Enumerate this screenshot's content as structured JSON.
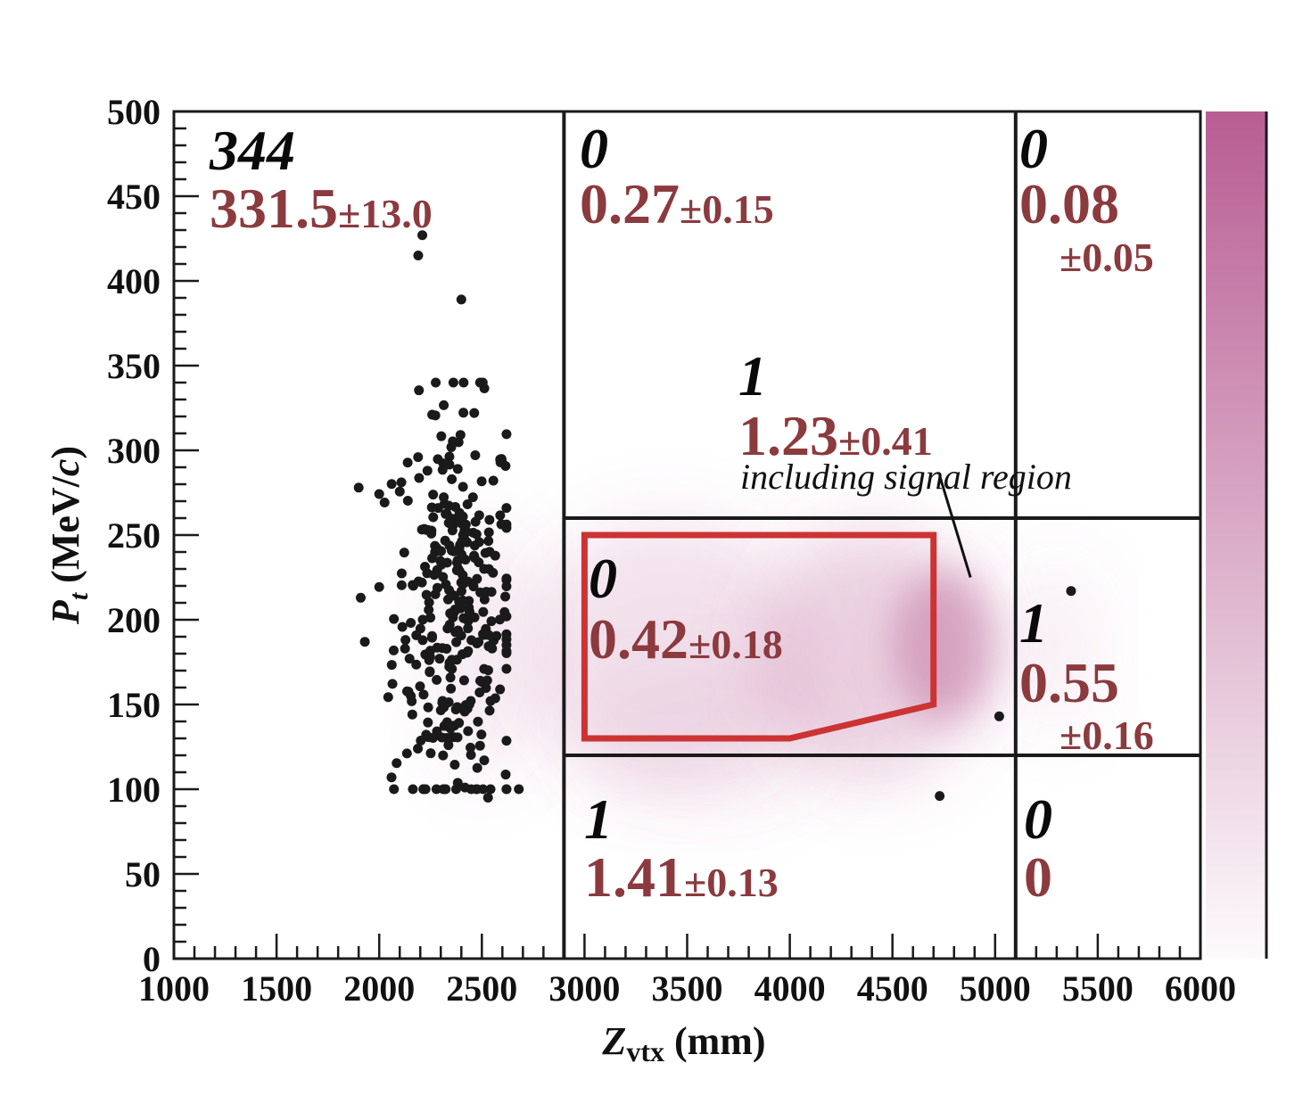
{
  "chart_data": {
    "type": "scatter",
    "xlabel_main": "Z",
    "xlabel_sub": "vtx",
    "xlabel_unit": " (mm)",
    "ylabel_main": "P",
    "ylabel_sub": "t",
    "ylabel_unit_a": " (MeV/",
    "ylabel_unit_b": "c",
    "ylabel_unit_c": ")",
    "xlim": [
      1000,
      6000
    ],
    "ylim": [
      0,
      500
    ],
    "x_ticks": [
      "1000",
      "1500",
      "2000",
      "2500",
      "3000",
      "3500",
      "4000",
      "4500",
      "5000",
      "5500",
      "6000"
    ],
    "y_ticks": [
      "0",
      "50",
      "100",
      "150",
      "200",
      "250",
      "300",
      "350",
      "400",
      "450",
      "500"
    ],
    "region_boundaries": {
      "x": [
        2900,
        5100
      ],
      "y": [
        120,
        260
      ]
    },
    "signal_box": [
      [
        3000,
        130
      ],
      [
        4000,
        130
      ],
      [
        4700,
        150
      ],
      [
        4700,
        250
      ],
      [
        3000,
        250
      ]
    ],
    "signal_pointer": [
      [
        4880,
        225
      ],
      [
        4730,
        285
      ]
    ],
    "regions": [
      {
        "id": "left",
        "observed": "344",
        "expected": "331.5",
        "error": "±13.0"
      },
      {
        "id": "mid-top",
        "observed": "0",
        "expected": "0.27",
        "error": "±0.15"
      },
      {
        "id": "right-top",
        "observed": "0",
        "expected": "0.08",
        "error": "±0.05"
      },
      {
        "id": "combined",
        "observed": "1",
        "expected": "1.23",
        "error": "±0.41",
        "note": "including signal region"
      },
      {
        "id": "signal",
        "observed": "0",
        "expected": "0.42",
        "error": "±0.18"
      },
      {
        "id": "right-mid",
        "observed": "1",
        "expected": "0.55",
        "error": "±0.16"
      },
      {
        "id": "mid-bottom",
        "observed": "1",
        "expected": "1.41",
        "error": "±0.13"
      },
      {
        "id": "right-bottom",
        "observed": "0",
        "expected": "0",
        "error": ""
      }
    ],
    "outlier_points": [
      {
        "x": 5370,
        "y": 217
      },
      {
        "x": 5020,
        "y": 143
      },
      {
        "x": 4730,
        "y": 96
      },
      {
        "x": 2190,
        "y": 415
      },
      {
        "x": 2210,
        "y": 427
      },
      {
        "x": 1900,
        "y": 278
      },
      {
        "x": 1910,
        "y": 213
      },
      {
        "x": 1930,
        "y": 187
      },
      {
        "x": 2680,
        "y": 100
      },
      {
        "x": 2530,
        "y": 95
      },
      {
        "x": 2060,
        "y": 107
      },
      {
        "x": 2400,
        "y": 389
      }
    ],
    "cluster": {
      "count": 344,
      "x_center": 2370,
      "x_spread": 150,
      "y_center": 205,
      "y_spread": 60
    },
    "colors": {
      "data_points": "#1a1a1a",
      "expected_text": "#8b3a3e",
      "signal_box": "#cc3333",
      "mc_density": "#b85d93",
      "region_lines": "#1a1a1a"
    }
  }
}
